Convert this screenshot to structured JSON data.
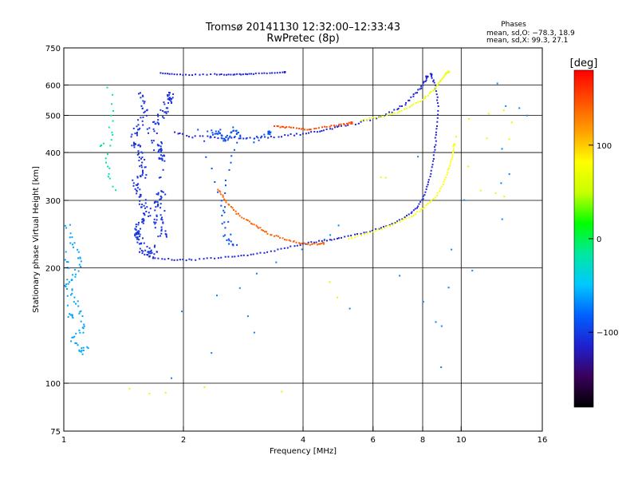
{
  "chart_data": {
    "type": "scatter",
    "title": "Tromsø 20141130 12:32:00–12:33:43",
    "subtitle": "RwPretec (8p)",
    "xlabel": "Frequency [MHz]",
    "ylabel": "Stationary phase Virtual Height [km]",
    "x_scale": "log",
    "y_scale": "log",
    "xlim": [
      1,
      16
    ],
    "ylim": [
      75,
      750
    ],
    "x_ticks": [
      1,
      2,
      4,
      6,
      8,
      10,
      16
    ],
    "x_tick_labels": [
      "1",
      "2",
      "4",
      "6",
      "8",
      "10",
      "16"
    ],
    "y_ticks": [
      75,
      100,
      200,
      300,
      400,
      500,
      600,
      750
    ],
    "y_tick_labels": [
      "75",
      "100",
      "200",
      "300",
      "400",
      "500",
      "600",
      "750"
    ],
    "x_grid": [
      2,
      4,
      6,
      8,
      10
    ],
    "y_grid": [
      100,
      200,
      300,
      400,
      500,
      600
    ],
    "stats_header": "Phases",
    "stats_o": "mean, sd,O: −78.3, 18.9",
    "stats_x": "mean, sd,X:  99.3, 27.1",
    "colorbar": {
      "label": "[deg]",
      "range": [
        -180,
        180
      ],
      "ticks": [
        100,
        0,
        -100
      ],
      "tick_labels": [
        "100",
        "0",
        "−100"
      ],
      "colors": [
        "#000000",
        "#3a005a",
        "#2020d0",
        "#0060ff",
        "#00c8ff",
        "#00e8a0",
        "#00ff00",
        "#c8ff00",
        "#ffff00",
        "#ffa000",
        "#ff5000",
        "#ff0000"
      ]
    },
    "series": [
      {
        "phase": -60,
        "density": 1.2,
        "spread": 0.6,
        "points": [
          [
            1.02,
            260
          ],
          [
            1.05,
            230
          ],
          [
            1.1,
            210
          ],
          [
            1.06,
            190
          ],
          [
            1.02,
            180
          ],
          [
            1.08,
            160
          ],
          [
            1.12,
            140
          ],
          [
            1.05,
            130
          ],
          [
            1.1,
            120
          ],
          [
            1.15,
            125
          ],
          [
            1.02,
            200
          ],
          [
            1.0,
            220
          ],
          [
            1.04,
            150
          ]
        ]
      },
      {
        "phase": -105,
        "density": 2.5,
        "spread": 1.0,
        "points": [
          [
            1.55,
            570
          ],
          [
            1.6,
            500
          ],
          [
            1.5,
            440
          ],
          [
            1.55,
            400
          ],
          [
            1.6,
            360
          ],
          [
            1.5,
            330
          ],
          [
            1.58,
            300
          ],
          [
            1.62,
            270
          ],
          [
            1.5,
            250
          ],
          [
            1.55,
            240
          ],
          [
            1.6,
            225
          ],
          [
            1.7,
            215
          ],
          [
            1.75,
            320
          ],
          [
            1.68,
            280
          ],
          [
            1.8,
            240
          ],
          [
            1.72,
            420
          ],
          [
            1.8,
            380
          ],
          [
            1.65,
            460
          ],
          [
            1.78,
            500
          ],
          [
            1.85,
            560
          ]
        ]
      },
      {
        "phase": -112,
        "density": 1.0,
        "spread": 0.15,
        "points": [
          [
            1.55,
            220
          ],
          [
            1.7,
            212
          ],
          [
            1.9,
            210
          ],
          [
            2.1,
            210
          ],
          [
            2.4,
            212
          ],
          [
            2.7,
            214
          ],
          [
            3.0,
            217
          ],
          [
            3.4,
            222
          ],
          [
            3.8,
            228
          ],
          [
            4.2,
            233
          ],
          [
            4.6,
            236
          ],
          [
            5.0,
            240
          ],
          [
            5.6,
            246
          ],
          [
            6.2,
            253
          ],
          [
            6.8,
            262
          ],
          [
            7.4,
            275
          ],
          [
            7.8,
            290
          ],
          [
            8.1,
            310
          ],
          [
            8.3,
            340
          ],
          [
            8.5,
            380
          ],
          [
            8.6,
            420
          ],
          [
            8.7,
            470
          ],
          [
            8.75,
            540
          ],
          [
            8.6,
            600
          ],
          [
            8.4,
            640
          ]
        ]
      },
      {
        "phase": -112,
        "density": 1.0,
        "spread": 0.25,
        "points": [
          [
            1.9,
            450
          ],
          [
            2.1,
            440
          ],
          [
            2.4,
            438
          ],
          [
            2.7,
            437
          ],
          [
            3.0,
            437
          ],
          [
            3.4,
            440
          ],
          [
            3.8,
            445
          ],
          [
            4.2,
            452
          ],
          [
            4.6,
            460
          ],
          [
            5.0,
            468
          ],
          [
            5.6,
            480
          ],
          [
            6.2,
            495
          ],
          [
            6.8,
            515
          ],
          [
            7.3,
            540
          ],
          [
            7.7,
            570
          ],
          [
            8.0,
            600
          ],
          [
            8.2,
            630
          ]
        ]
      },
      {
        "phase": -112,
        "density": 1.0,
        "spread": 0.1,
        "points": [
          [
            1.75,
            645
          ],
          [
            1.9,
            640
          ],
          [
            2.1,
            638
          ],
          [
            2.4,
            640
          ],
          [
            2.6,
            638
          ],
          [
            2.8,
            640
          ],
          [
            3.0,
            642
          ],
          [
            3.3,
            645
          ],
          [
            3.6,
            648
          ]
        ]
      },
      {
        "phase": -90,
        "density": 1.5,
        "spread": 0.5,
        "points": [
          [
            2.35,
            440
          ],
          [
            2.45,
            455
          ],
          [
            2.55,
            425
          ],
          [
            2.65,
            460
          ],
          [
            2.75,
            445
          ],
          [
            2.5,
            300
          ],
          [
            2.55,
            240
          ],
          [
            2.7,
            228
          ],
          [
            2.2,
            460
          ],
          [
            3.0,
            430
          ],
          [
            3.3,
            450
          ]
        ]
      },
      {
        "phase": 80,
        "density": 1.0,
        "spread": 0.15,
        "points": [
          [
            5.2,
            238
          ],
          [
            5.8,
            246
          ],
          [
            6.4,
            254
          ],
          [
            7.0,
            264
          ],
          [
            7.6,
            275
          ],
          [
            8.1,
            288
          ],
          [
            8.6,
            305
          ],
          [
            9.0,
            330
          ],
          [
            9.3,
            360
          ],
          [
            9.5,
            390
          ],
          [
            9.6,
            420
          ]
        ]
      },
      {
        "phase": 70,
        "density": 1.0,
        "spread": 0.15,
        "points": [
          [
            5.6,
            485
          ],
          [
            6.2,
            495
          ],
          [
            6.8,
            505
          ],
          [
            7.4,
            525
          ],
          [
            8.0,
            550
          ],
          [
            8.5,
            580
          ],
          [
            8.8,
            610
          ],
          [
            9.1,
            640
          ],
          [
            9.3,
            650
          ]
        ]
      },
      {
        "phase": 140,
        "density": 1.2,
        "spread": 0.2,
        "points": [
          [
            2.45,
            320
          ],
          [
            2.55,
            300
          ],
          [
            2.7,
            280
          ],
          [
            2.9,
            265
          ],
          [
            3.1,
            255
          ],
          [
            3.3,
            245
          ],
          [
            3.6,
            238
          ],
          [
            3.9,
            232
          ],
          [
            4.2,
            230
          ],
          [
            4.5,
            232
          ]
        ]
      },
      {
        "phase": 150,
        "density": 1.0,
        "spread": 0.2,
        "points": [
          [
            3.4,
            470
          ],
          [
            3.6,
            465
          ],
          [
            3.9,
            462
          ],
          [
            4.2,
            460
          ],
          [
            4.6,
            468
          ],
          [
            5.0,
            472
          ],
          [
            5.3,
            478
          ]
        ]
      },
      {
        "phase": -20,
        "density": 0.5,
        "spread": 0.6,
        "points": [
          [
            1.3,
            590
          ],
          [
            1.35,
            520
          ],
          [
            1.3,
            470
          ],
          [
            1.32,
            430
          ],
          [
            1.28,
            380
          ],
          [
            1.3,
            350
          ],
          [
            1.35,
            320
          ],
          [
            1.25,
            420
          ]
        ]
      },
      {
        "phase": -70,
        "density": 0.3,
        "spread": 1.5,
        "points": [
          [
            2.0,
            150
          ],
          [
            2.8,
            180
          ],
          [
            3.5,
            205
          ],
          [
            4.4,
            230
          ],
          [
            1.9,
            100
          ],
          [
            3.0,
            140
          ],
          [
            9.0,
            180
          ],
          [
            8.8,
            110
          ],
          [
            12.8,
            330
          ],
          [
            12.8,
            540
          ],
          [
            14.4,
            485
          ],
          [
            12.6,
            260
          ],
          [
            6.9,
            192
          ],
          [
            8.9,
            146
          ],
          [
            12.2,
            625
          ],
          [
            4.8,
            250
          ]
        ]
      },
      {
        "phase": 60,
        "density": 0.3,
        "spread": 1.2,
        "points": [
          [
            10.5,
            497
          ],
          [
            12.8,
            520
          ],
          [
            13.4,
            435
          ],
          [
            9.8,
            440
          ],
          [
            11.0,
            320
          ],
          [
            13.0,
            300
          ],
          [
            1.85,
            94
          ],
          [
            1.47,
            99
          ],
          [
            3.5,
            97
          ],
          [
            6.3,
            340
          ]
        ]
      }
    ]
  }
}
